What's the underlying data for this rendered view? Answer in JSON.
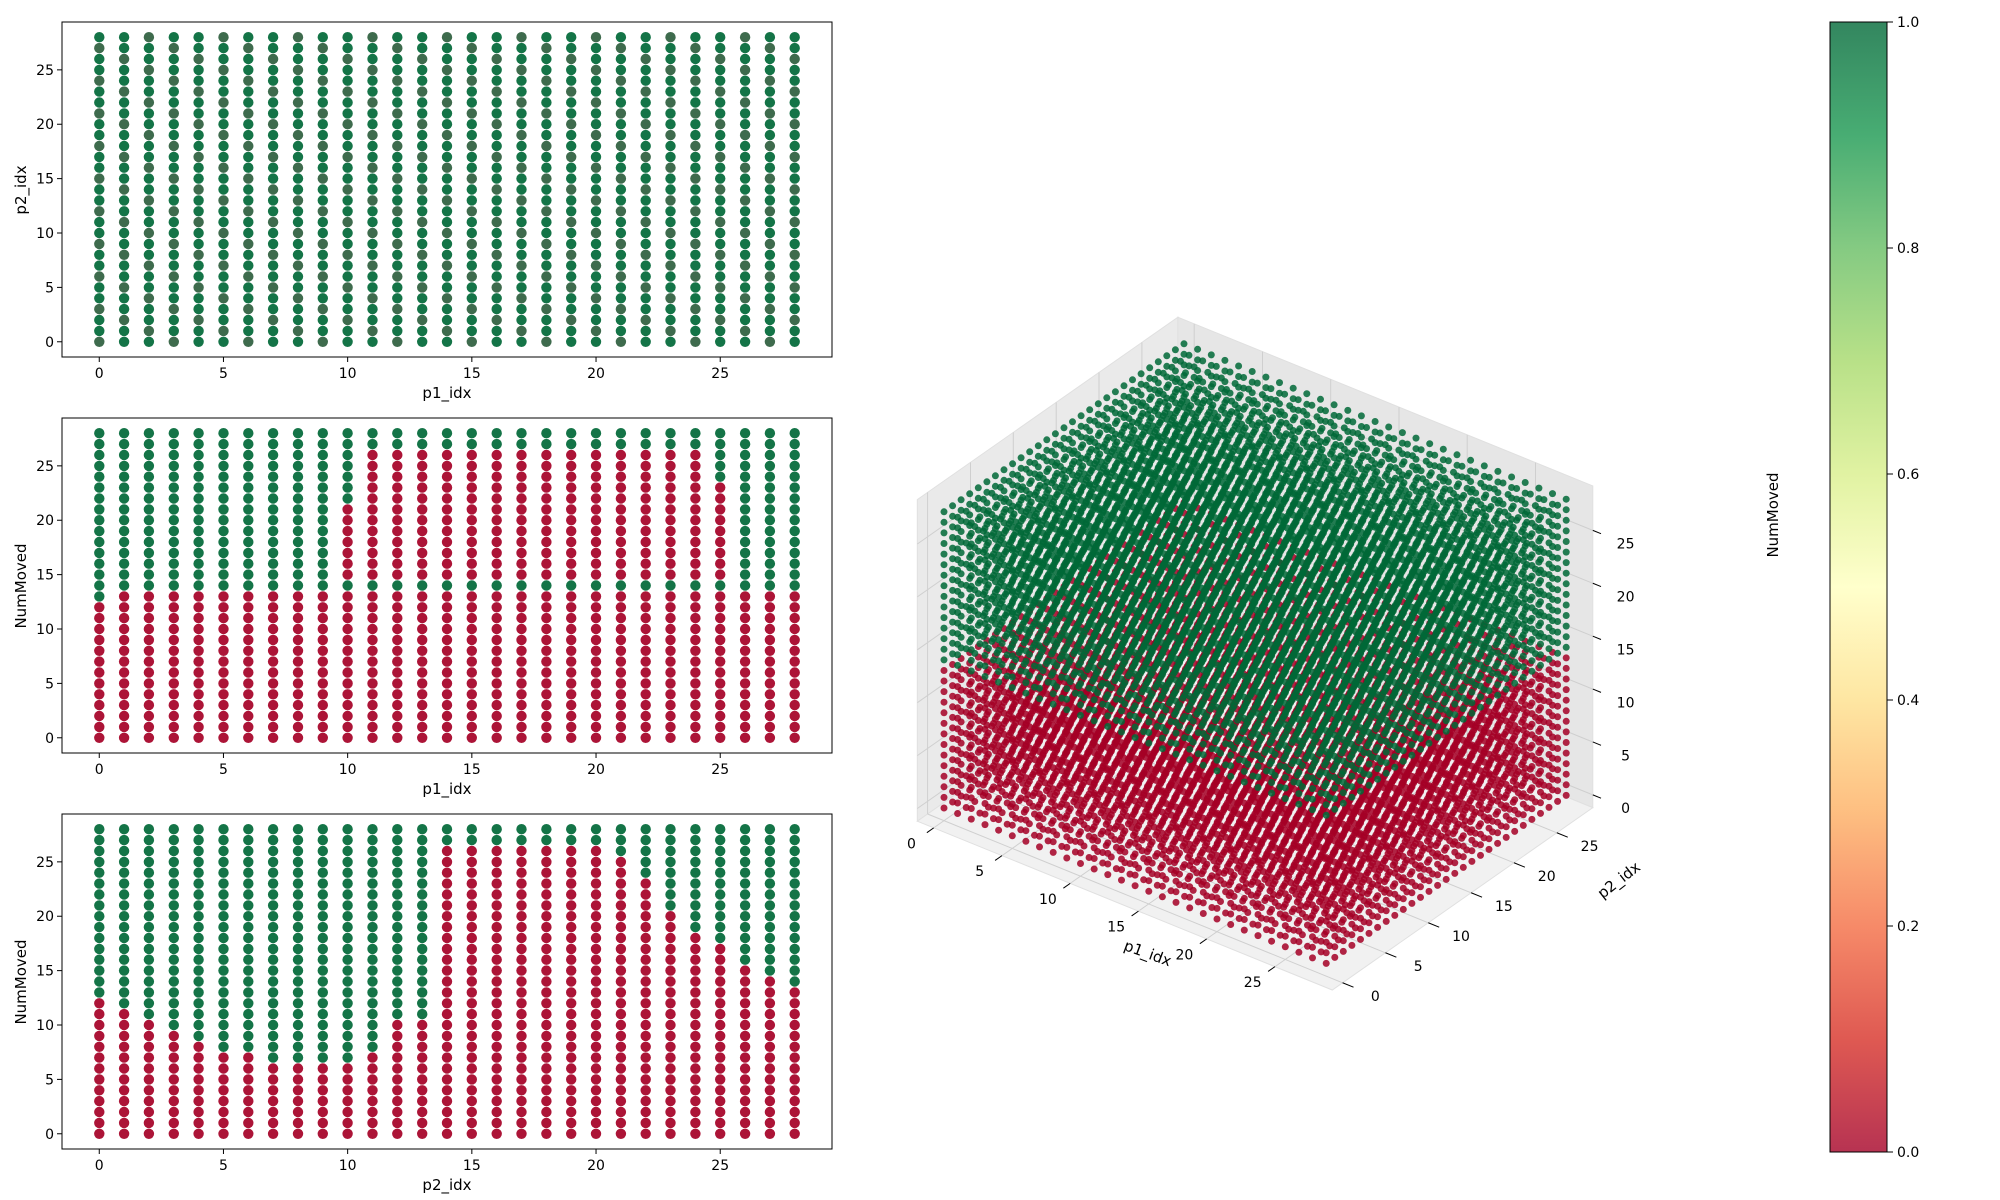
{
  "figure": {
    "background": "#ffffff"
  },
  "colormap": {
    "name": "RdYlGn",
    "alpha": 0.8,
    "stops": [
      "#a50026",
      "#d73027",
      "#f46d43",
      "#fdae61",
      "#fee08b",
      "#ffffbf",
      "#d9ef8b",
      "#a6d96a",
      "#66bd63",
      "#1a9850",
      "#006837"
    ]
  },
  "chart_data": [
    {
      "id": "p1-p2",
      "type": "scatter",
      "title": "",
      "xlabel": "p1_idx",
      "ylabel": "p2_idx",
      "xlim": [
        -1.5,
        29.5
      ],
      "ylim": [
        -1.4,
        29.4
      ],
      "xticks": [
        0,
        5,
        10,
        15,
        20,
        25
      ],
      "yticks": [
        0,
        5,
        10,
        15,
        20,
        25
      ],
      "grid": false,
      "x_values": [
        0,
        28
      ],
      "y_values": [
        0,
        28
      ],
      "value_rule": "all points overplotted; visible color green (1) with darker overlap",
      "value": 1
    },
    {
      "id": "p1-num",
      "type": "scatter",
      "title": "",
      "xlabel": "p1_idx",
      "ylabel": "NumMoved",
      "xlim": [
        -1.5,
        29.5
      ],
      "ylim": [
        -1.4,
        29.4
      ],
      "xticks": [
        0,
        5,
        10,
        15,
        20,
        25
      ],
      "yticks": [
        0,
        5,
        10,
        15,
        20,
        25
      ],
      "grid": false,
      "x_values": [
        0,
        28
      ],
      "y_values": [
        0,
        28
      ],
      "green_from_by_x": [
        13,
        14,
        14,
        14,
        14,
        14,
        14,
        14,
        14,
        16,
        22,
        27,
        27,
        27,
        27,
        27,
        27,
        27,
        27,
        27,
        27,
        27,
        27,
        27,
        27,
        24,
        14,
        14,
        14
      ],
      "green_below_by_x": [
        28,
        27,
        26,
        26,
        26,
        23,
        23,
        23,
        20,
        18,
        14,
        14,
        14,
        14,
        14,
        14,
        14,
        14,
        14,
        14,
        14,
        14,
        14,
        14,
        14,
        14,
        28,
        28,
        28
      ],
      "red_value": 0,
      "green_value": 1
    },
    {
      "id": "p2-num",
      "type": "scatter",
      "title": "",
      "xlabel": "p2_idx",
      "ylabel": "NumMoved",
      "xlim": [
        -1.5,
        29.5
      ],
      "ylim": [
        -1.4,
        29.4
      ],
      "xticks": [
        0,
        5,
        10,
        15,
        20,
        25
      ],
      "yticks": [
        0,
        5,
        10,
        15,
        20,
        25
      ],
      "grid": false,
      "x_values": [
        0,
        28
      ],
      "y_values": [
        0,
        28
      ],
      "green_threshold_by_x": [
        13,
        12,
        11,
        10,
        9,
        8,
        8,
        7,
        7,
        7,
        7,
        8,
        11,
        11,
        27,
        27,
        27,
        27,
        27,
        27,
        27,
        26,
        24,
        21,
        19,
        18,
        16,
        15,
        14
      ],
      "red_value": 0,
      "green_value": 1
    },
    {
      "id": "cube-3d",
      "type": "scatter3d",
      "title": "",
      "xlabel": "p1_idx",
      "ylabel": "p2_idx",
      "zlabel": "NumMoved",
      "xlim": [
        0,
        28
      ],
      "ylim": [
        0,
        28
      ],
      "zlim": [
        0,
        28
      ],
      "xticks": [
        0,
        5,
        10,
        15,
        20,
        25
      ],
      "yticks": [
        0,
        5,
        10,
        15,
        20,
        25
      ],
      "zticks": [
        0,
        5,
        10,
        15,
        20,
        25
      ],
      "grid": true,
      "elev_deg": 30,
      "azim_deg": -60,
      "value_rule": "green (1) when NumMoved >= 14, otherwise red (0)",
      "red_value": 0,
      "green_value": 1
    }
  ],
  "colorbar": {
    "min": 0.0,
    "max": 1.0,
    "ticks": [
      "0.0",
      "0.2",
      "0.4",
      "0.6",
      "0.8",
      "1.0"
    ]
  }
}
